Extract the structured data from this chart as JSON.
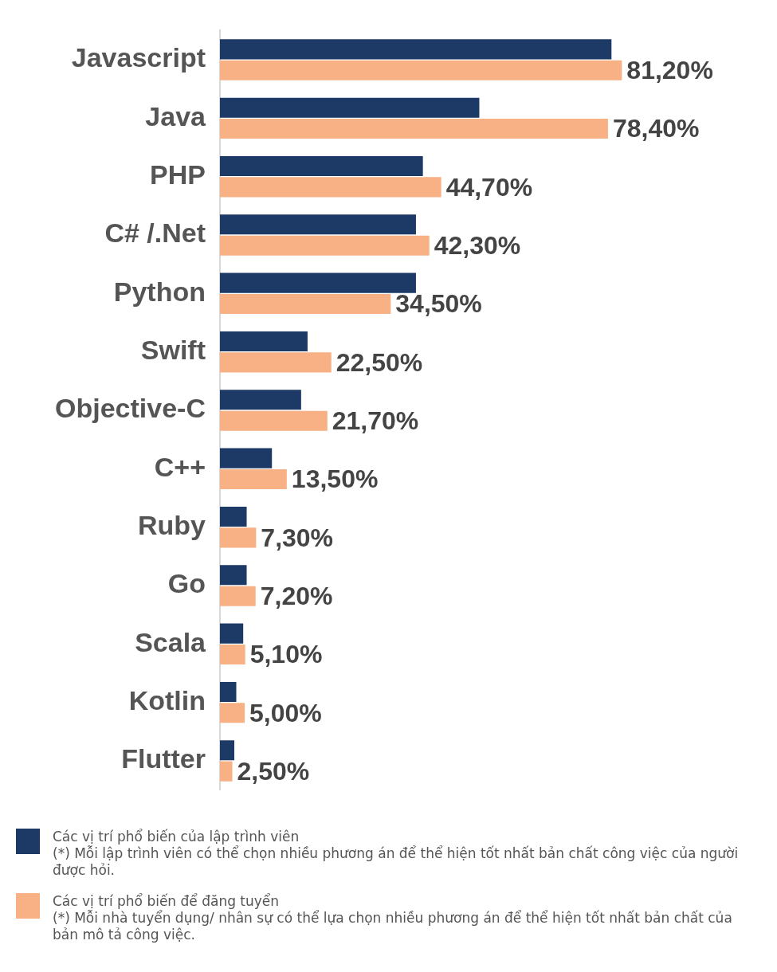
{
  "chart_data": {
    "type": "bar",
    "orientation": "horizontal",
    "categories": [
      "Javascript",
      "Java",
      "PHP",
      "C# /.Net",
      "Python",
      "Swift",
      "Objective-C",
      "C++",
      "Ruby",
      "Go",
      "Scala",
      "Kotlin",
      "Flutter"
    ],
    "series": [
      {
        "name": "Các vị trí phổ biến của lập trình viên",
        "color": "#1d3a66",
        "values": [
          79.1,
          52.4,
          41.0,
          39.6,
          39.6,
          17.7,
          16.4,
          10.5,
          5.4,
          5.4,
          4.7,
          3.3,
          2.9
        ]
      },
      {
        "name": "Các vị trí phổ biến để đăng tuyển",
        "color": "#f7b184",
        "values": [
          81.2,
          78.4,
          44.7,
          42.3,
          34.5,
          22.5,
          21.7,
          13.5,
          7.3,
          7.2,
          5.1,
          5.0,
          2.5
        ],
        "value_labels": [
          "81,20%",
          "78,40%",
          "44,70%",
          "42,30%",
          "34,50%",
          "22,50%",
          "21,70%",
          "13,50%",
          "7,30%",
          "7,20%",
          "5,10%",
          "5,00%",
          "2,50%"
        ]
      }
    ],
    "tick_labels": "y",
    "grid": false,
    "legend": "bottom",
    "annotations": [
      "(*) Mỗi lập trình viên có thể chọn nhiều phương án để thể hiện tốt nhất bản chất công việc của người được hỏi.",
      "(*) Mỗi nhà tuyển dụng/ nhân sự có thể lựa chọn nhiều phương án để thể hiện tốt nhất bản chất của bản mô tả công việc."
    ]
  }
}
